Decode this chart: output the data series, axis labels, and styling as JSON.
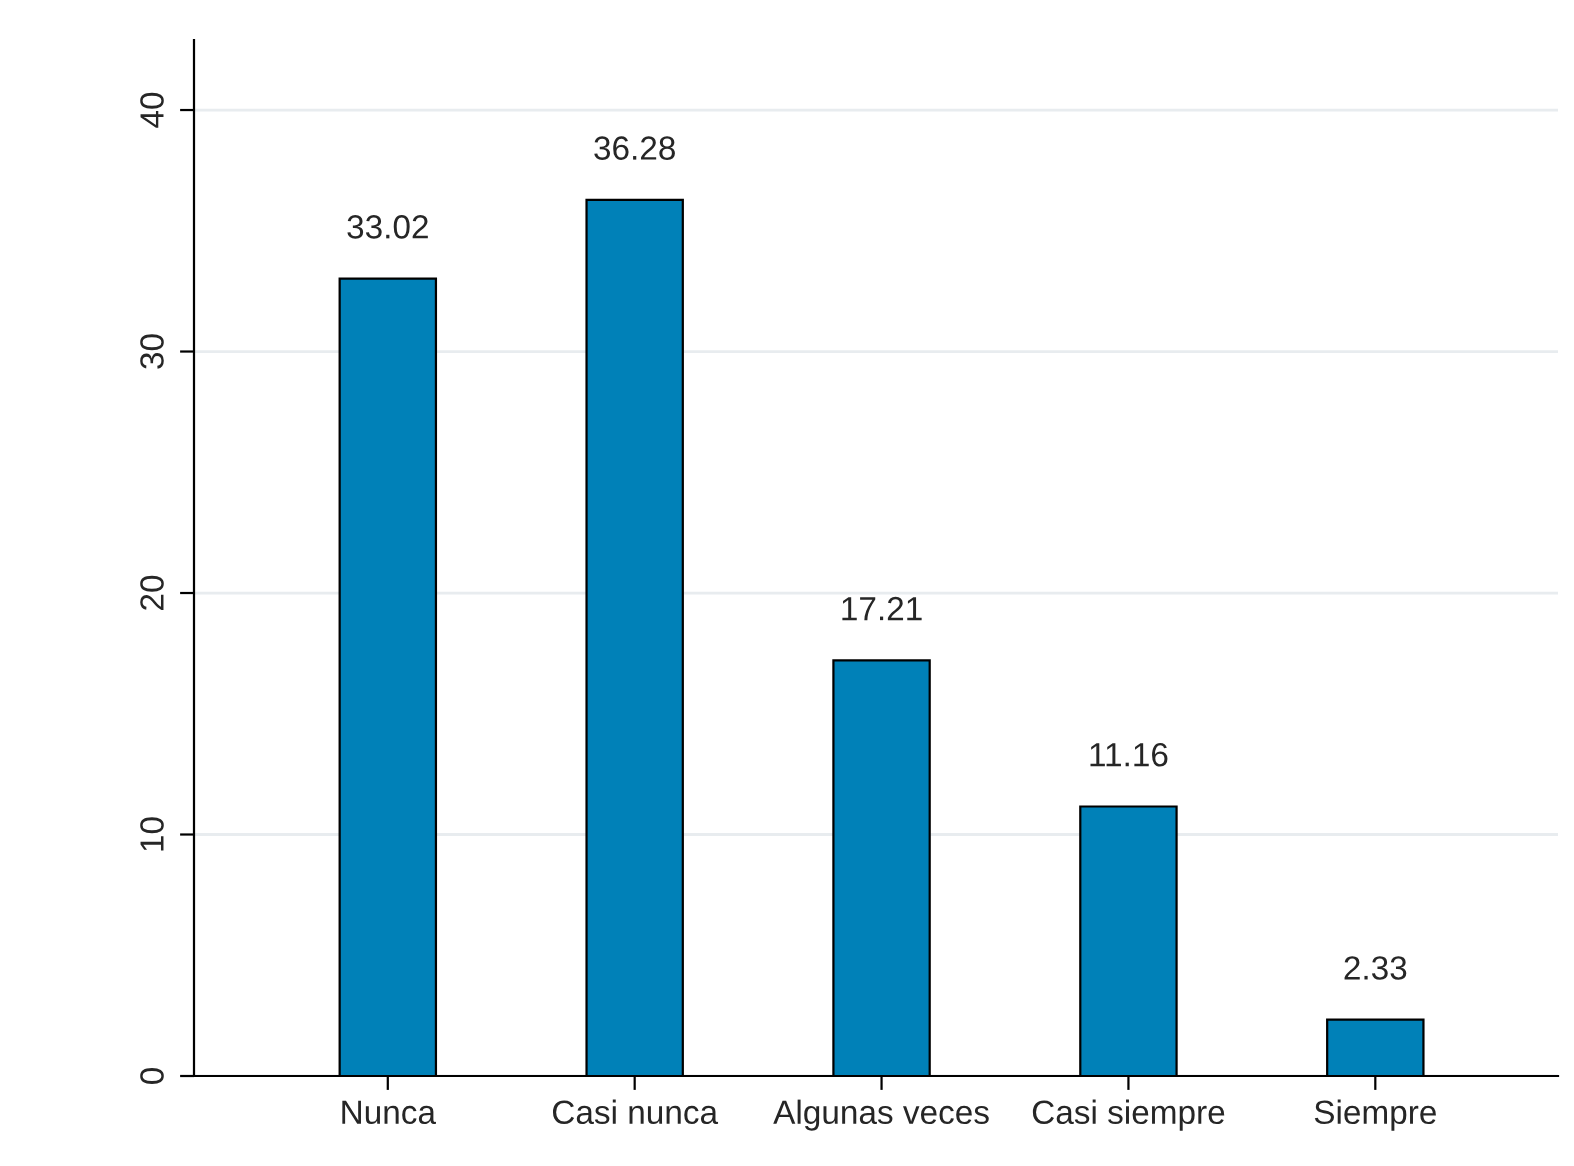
{
  "chart_data": {
    "type": "bar",
    "categories": [
      "Nunca",
      "Casi nunca",
      "Algunas veces",
      "Casi siempre",
      "Siempre"
    ],
    "values": [
      33.02,
      36.28,
      17.21,
      11.16,
      2.33
    ],
    "color": "#0081b8",
    "ylim": [
      0,
      42.9
    ],
    "yticks": [
      0,
      10,
      20,
      30,
      40
    ],
    "grid": "y",
    "data_labels": true
  }
}
